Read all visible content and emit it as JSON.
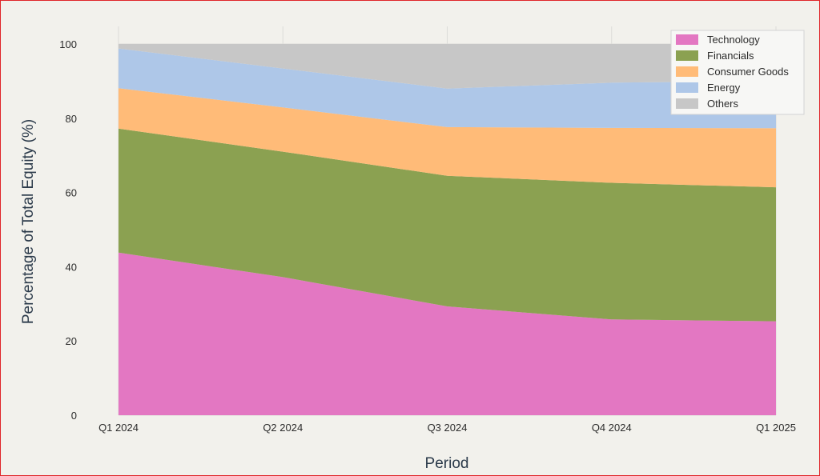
{
  "chart_data": {
    "type": "area",
    "stacked": true,
    "title": "",
    "xlabel": "Period",
    "ylabel": "Percentage of Total Equity (%)",
    "categories": [
      "Q1 2024",
      "Q2 2024",
      "Q3 2024",
      "Q4 2024",
      "Q1 2025"
    ],
    "ylim": [
      0,
      100
    ],
    "yticks": [
      0,
      20,
      40,
      60,
      80,
      100
    ],
    "grid": true,
    "legend_position": "top-right",
    "series": [
      {
        "name": "Technology",
        "color": "#e377c2",
        "values": [
          43.8,
          37.2,
          29.3,
          25.8,
          25.3
        ]
      },
      {
        "name": "Financials",
        "color": "#8ba151",
        "values": [
          33.4,
          33.8,
          35.2,
          36.8,
          36.1
        ]
      },
      {
        "name": "Consumer Goods",
        "color": "#ffbb78",
        "values": [
          10.9,
          11.9,
          13.1,
          14.8,
          15.9
        ]
      },
      {
        "name": "Energy",
        "color": "#aec7e8",
        "values": [
          10.7,
          10.5,
          10.4,
          12.2,
          12.7
        ]
      },
      {
        "name": "Others",
        "color": "#c7c7c7",
        "values": [
          1.2,
          6.6,
          12.0,
          10.4,
          10.0
        ]
      }
    ]
  }
}
